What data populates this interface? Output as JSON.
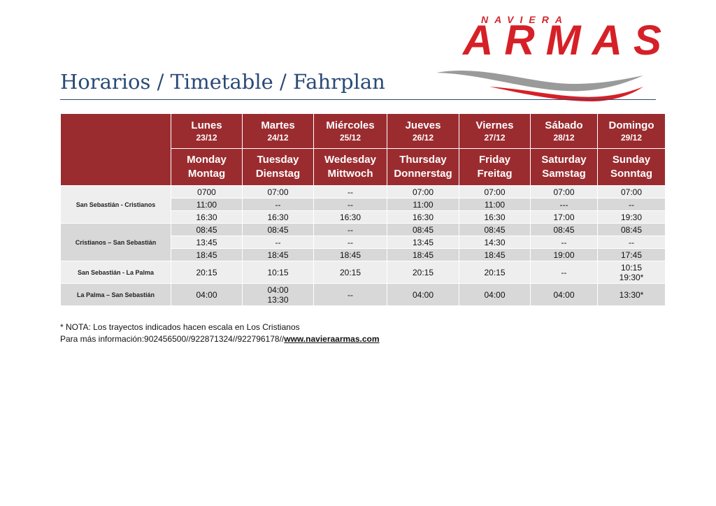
{
  "logo": {
    "small": "NAVIERA",
    "big": "ARMAS",
    "brand_red": "#d62027",
    "wave_gray": "#9a9a9a"
  },
  "title": "Horarios / Timetable / Fahrplan",
  "colors": {
    "header_bg": "#9a2c30",
    "row_light": "#eeeeee",
    "row_dark": "#d8d8d8",
    "title": "#2a4a77"
  },
  "days": [
    {
      "es": "Lunes",
      "date": "23/12",
      "en": "Monday",
      "de": "Montag"
    },
    {
      "es": "Martes",
      "date": "24/12",
      "en": "Tuesday",
      "de": "Dienstag"
    },
    {
      "es": "Miércoles",
      "date": "25/12",
      "en": "Wedesday",
      "de": "Mittwoch"
    },
    {
      "es": "Jueves",
      "date": "26/12",
      "en": "Thursday",
      "de": "Donnerstag"
    },
    {
      "es": "Viernes",
      "date": "27/12",
      "en": "Friday",
      "de": "Freitag"
    },
    {
      "es": "Sábado",
      "date": "28/12",
      "en": "Saturday",
      "de": "Samstag"
    },
    {
      "es": "Domingo",
      "date": "29/12",
      "en": "Sunday",
      "de": "Sonntag"
    }
  ],
  "routes": [
    {
      "name": "San Sebastián - Cristianos",
      "rows": [
        [
          "0700",
          "07:00",
          "--",
          "07:00",
          "07:00",
          "07:00",
          "07:00"
        ],
        [
          "11:00",
          "--",
          "--",
          "11:00",
          "11:00",
          "---",
          "--"
        ],
        [
          "16:30",
          "16:30",
          "16:30",
          "16:30",
          "16:30",
          "17:00",
          "19:30"
        ]
      ]
    },
    {
      "name": "Cristianos – San Sebastián",
      "rows": [
        [
          "08:45",
          "08:45",
          "--",
          "08:45",
          "08:45",
          "08:45",
          "08:45"
        ],
        [
          "13:45",
          "--",
          "--",
          "13:45",
          "14:30",
          "--",
          "--"
        ],
        [
          "18:45",
          "18:45",
          "18:45",
          "18:45",
          "18:45",
          "19:00",
          "17:45"
        ]
      ]
    },
    {
      "name": "San Sebastián - La Palma",
      "cells": [
        [
          "20:15"
        ],
        [
          "10:15"
        ],
        [
          "20:15"
        ],
        [
          "20:15"
        ],
        [
          "20:15"
        ],
        [
          "--"
        ],
        [
          "10:15",
          "19:30*"
        ]
      ]
    },
    {
      "name": "La Palma – San Sebastián",
      "cells": [
        [
          "04:00"
        ],
        [
          "04:00",
          "13:30"
        ],
        [
          "--"
        ],
        [
          "04:00"
        ],
        [
          "04:00"
        ],
        [
          "04:00"
        ],
        [
          "13:30*"
        ]
      ]
    }
  ],
  "note": {
    "line1": "* NOTA: Los trayectos indicados hacen escala en Los Cristianos",
    "line2_prefix": "Para más información:902456500//922871324//922796178//",
    "link": "www.navieraarmas.com"
  }
}
